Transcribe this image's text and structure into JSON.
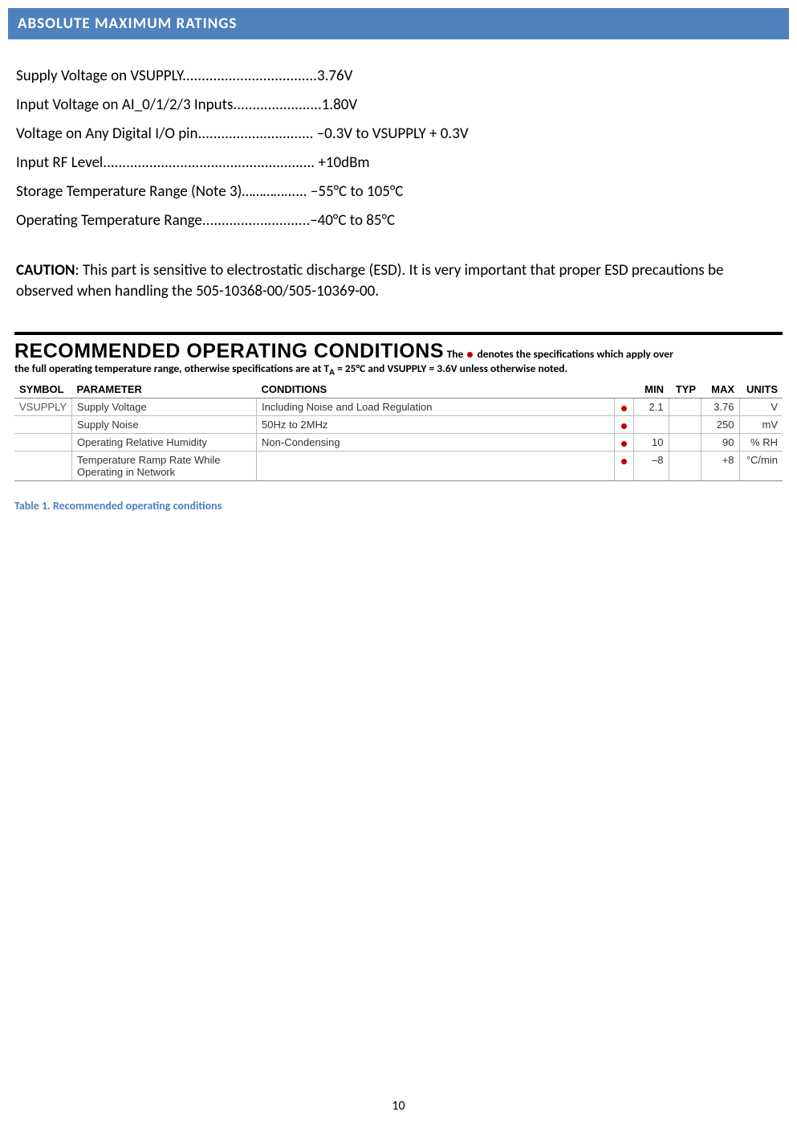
{
  "header": {
    "title": "ABSOLUTE MAXIMUM RATINGS"
  },
  "ratings": [
    "Supply Voltage on VSUPPLY...................................3.76V",
    "Input Voltage on AI_0/1/2/3 Inputs.......................1.80V",
    "Voltage on Any Digital I/O pin.............................. –0.3V to VSUPPLY + 0.3V",
    "Input RF Level....................................................... +10dBm",
    "Storage Temperature Range (Note 3)…………...... –55°C to 105°C",
    "Operating Temperature Range............................–40°C to 85°C"
  ],
  "caution": {
    "label": "CAUTION",
    "text": ": This part is sensitive to electrostatic discharge (ESD). It is very important that proper ESD precautions be observed when handling the 505-10368-00/505-10369-00."
  },
  "rec": {
    "title": "RECOMMENDED OPERATING CONDITIONS",
    "sub1_pre": "  The ",
    "sub1_post": " denotes the specifications which apply over",
    "sub2": "the full operating temperature range, otherwise specifications are at T",
    "sub2_A": "A",
    "sub2_after": " = 25°C and VSUPPLY = 3.6V unless otherwise noted.",
    "columns": [
      "SYMBOL",
      "PARAMETER",
      "CONDITIONS",
      "",
      "MIN",
      "TYP",
      "MAX",
      "UNITS"
    ],
    "col_widths": [
      "70px",
      "230px",
      "auto",
      "16px",
      "44px",
      "40px",
      "44px",
      "54px"
    ],
    "header_align": [
      "l",
      "l",
      "l",
      "l",
      "r",
      "r",
      "r",
      "r"
    ],
    "rows": [
      {
        "symbol": "VSUPPLY",
        "parameter": "Supply Voltage",
        "conditions": "Including Noise and Load Regulation",
        "dot": true,
        "min": "2.1",
        "typ": "",
        "max": "3.76",
        "units": "V"
      },
      {
        "symbol": "",
        "parameter": "Supply Noise",
        "conditions": "50Hz to 2MHz",
        "dot": true,
        "min": "",
        "typ": "",
        "max": "250",
        "units": "mV"
      },
      {
        "symbol": "",
        "parameter": "Operating Relative Humidity",
        "conditions": "Non-Condensing",
        "dot": true,
        "min": "10",
        "typ": "",
        "max": "90",
        "units": "% RH"
      },
      {
        "symbol": "",
        "parameter": "Temperature Ramp Rate While Operating in Network",
        "conditions": "",
        "dot": true,
        "min": "–8",
        "typ": "",
        "max": "+8",
        "units": "°C/min"
      }
    ]
  },
  "table_caption": "Table 1. Recommended operating conditions",
  "page_number": "10",
  "colors": {
    "header_bg": "#4f81bd",
    "header_text": "#ffffff",
    "dot": "#c00000",
    "caption": "#4f81bd",
    "rule": "#000000",
    "border": "#bbbbbb"
  },
  "fonts": {
    "body": "Calibri, Arial, sans-serif",
    "title": "Arial Black, Impact, sans-serif",
    "table": "Arial, sans-serif"
  }
}
